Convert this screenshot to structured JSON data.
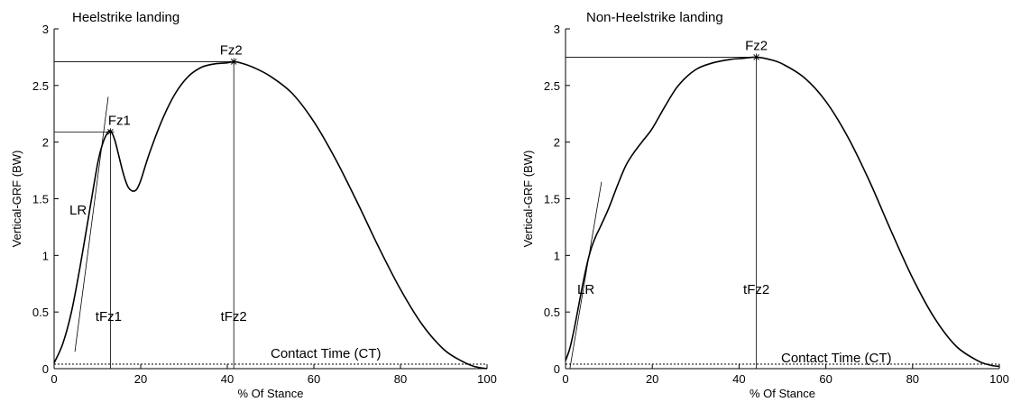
{
  "chart_data": [
    {
      "type": "line",
      "title": "Heelstrike landing",
      "xlabel": "% Of Stance",
      "ylabel": "Vertical-GRF (BW)",
      "xlim": [
        0,
        100
      ],
      "ylim": [
        0,
        3
      ],
      "xticks": [
        "0",
        "20",
        "40",
        "60",
        "80",
        "100"
      ],
      "yticks": [
        "0",
        "0.5",
        "1",
        "1.5",
        "2",
        "2.5",
        "3"
      ],
      "series": [
        {
          "x": [
            0,
            2,
            4,
            6,
            8,
            10,
            11,
            12,
            13,
            14,
            15,
            16,
            17,
            18,
            19,
            20,
            22,
            25,
            28,
            31,
            34,
            37,
            40,
            41.5,
            43,
            46,
            50,
            55,
            60,
            65,
            70,
            75,
            80,
            85,
            90,
            94,
            97,
            100
          ],
          "y": [
            0.05,
            0.22,
            0.5,
            0.9,
            1.35,
            1.8,
            1.96,
            2.06,
            2.1,
            2.02,
            1.87,
            1.72,
            1.61,
            1.57,
            1.58,
            1.66,
            1.9,
            2.2,
            2.43,
            2.58,
            2.66,
            2.69,
            2.7,
            2.71,
            2.7,
            2.66,
            2.58,
            2.43,
            2.18,
            1.85,
            1.47,
            1.07,
            0.7,
            0.39,
            0.17,
            0.07,
            0.02,
            0.0
          ]
        }
      ],
      "contact_time_level": 0.04,
      "peaks": [
        {
          "label": "Fz1",
          "x": 13,
          "y": 2.09,
          "time_label": "tFz1"
        },
        {
          "label": "Fz2",
          "x": 41.5,
          "y": 2.71,
          "time_label": "tFz2"
        }
      ],
      "loading_rate": {
        "label": "LR",
        "x1": 4.8,
        "y1": 0.15,
        "x2": 12.5,
        "y2": 2.4
      },
      "contact_time_label": "Contact Time (CT)",
      "grid": false
    },
    {
      "type": "line",
      "title": "Non-Heelstrike landing",
      "xlabel": "% Of Stance",
      "ylabel": "Vertical-GRF (BW)",
      "xlim": [
        0,
        100
      ],
      "ylim": [
        0,
        3
      ],
      "xticks": [
        "0",
        "20",
        "40",
        "60",
        "80",
        "100"
      ],
      "yticks": [
        "0",
        "0.5",
        "1",
        "1.5",
        "2",
        "2.5",
        "3"
      ],
      "series": [
        {
          "x": [
            0,
            1,
            2,
            3,
            4,
            5,
            6,
            7,
            8,
            10,
            12,
            14,
            16,
            18,
            20,
            23,
            26,
            30,
            34,
            38,
            41,
            44,
            47,
            50,
            55,
            60,
            65,
            70,
            75,
            80,
            85,
            90,
            95,
            98,
            100
          ],
          "y": [
            0.07,
            0.18,
            0.35,
            0.55,
            0.75,
            0.93,
            1.07,
            1.17,
            1.25,
            1.42,
            1.62,
            1.8,
            1.92,
            2.02,
            2.12,
            2.32,
            2.5,
            2.64,
            2.7,
            2.73,
            2.74,
            2.75,
            2.73,
            2.69,
            2.57,
            2.36,
            2.05,
            1.66,
            1.22,
            0.8,
            0.45,
            0.2,
            0.07,
            0.03,
            0.02
          ]
        }
      ],
      "contact_time_level": 0.04,
      "peaks": [
        {
          "label": "Fz2",
          "x": 44,
          "y": 2.75,
          "time_label": "tFz2"
        }
      ],
      "loading_rate": {
        "label": "LR",
        "x1": 1,
        "y1": 0.0,
        "x2": 8.3,
        "y2": 1.65
      },
      "contact_time_label": "Contact Time (CT)",
      "grid": false
    }
  ]
}
